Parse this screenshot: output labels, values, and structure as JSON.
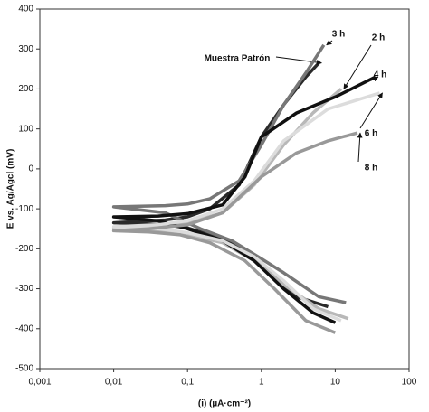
{
  "chart_data": {
    "type": "line",
    "xlabel": "(i) (µA·cm⁻²)",
    "ylabel": "E vs. Ag/Agcl (mV)",
    "xscale": "log",
    "xlim": [
      0.001,
      100
    ],
    "xticks": [
      {
        "value": 0.001,
        "label": "0,001"
      },
      {
        "value": 0.01,
        "label": "0,01"
      },
      {
        "value": 0.1,
        "label": "0,1"
      },
      1,
      10,
      100
    ],
    "ylim": [
      -500,
      400
    ],
    "yticks": [
      -500,
      -400,
      -300,
      -200,
      -100,
      0,
      100,
      200,
      300,
      400
    ],
    "series": [
      {
        "name": "Muestra Patrón",
        "color": "#2a2a2a",
        "x": [
          8,
          3,
          1,
          0.5,
          0.2,
          0.1,
          0.05,
          0.01,
          0.05,
          0.1,
          0.2,
          0.5,
          1,
          2,
          4,
          6
        ],
        "values": [
          -345,
          -320,
          -240,
          -195,
          -165,
          -148,
          -140,
          -135,
          -128,
          -120,
          -100,
          -40,
          80,
          160,
          230,
          265
        ]
      },
      {
        "name": "3 h",
        "color": "#777777",
        "x": [
          14,
          6,
          2,
          1,
          0.4,
          0.15,
          0.05,
          0.01,
          0.05,
          0.1,
          0.2,
          0.5,
          1,
          2,
          4,
          7
        ],
        "values": [
          -335,
          -320,
          -260,
          -225,
          -180,
          -150,
          -110,
          -95,
          -92,
          -88,
          -75,
          -30,
          60,
          160,
          240,
          310
        ]
      },
      {
        "name": "2 h",
        "color": "#b8b8b8",
        "x": [
          15,
          6,
          2,
          0.8,
          0.3,
          0.1,
          0.04,
          0.01,
          0.04,
          0.1,
          0.3,
          0.8,
          2,
          5,
          12
        ],
        "values": [
          -375,
          -350,
          -290,
          -230,
          -185,
          -165,
          -155,
          -150,
          -145,
          -135,
          -110,
          -40,
          60,
          140,
          200
        ]
      },
      {
        "name": "4 h",
        "color": "#111111",
        "x": [
          10,
          5,
          2,
          0.8,
          0.3,
          0.1,
          0.04,
          0.01,
          0.04,
          0.1,
          0.3,
          0.6,
          1,
          3,
          10,
          35
        ],
        "values": [
          -385,
          -360,
          -300,
          -230,
          -180,
          -150,
          -130,
          -120,
          -118,
          -112,
          -90,
          -20,
          80,
          140,
          180,
          230
        ]
      },
      {
        "name": "6 h",
        "color": "#dcdcdc",
        "x": [
          12,
          5,
          2,
          0.8,
          0.3,
          0.1,
          0.04,
          0.01,
          0.04,
          0.1,
          0.3,
          0.8,
          2,
          8,
          40
        ],
        "values": [
          -380,
          -350,
          -280,
          -220,
          -180,
          -160,
          -150,
          -145,
          -140,
          -130,
          -100,
          -30,
          70,
          150,
          190
        ]
      },
      {
        "name": "8 h",
        "color": "#999999",
        "x": [
          10,
          4,
          1.5,
          0.6,
          0.2,
          0.08,
          0.03,
          0.01,
          0.03,
          0.1,
          0.3,
          1,
          3,
          8,
          20
        ],
        "values": [
          -410,
          -380,
          -300,
          -230,
          -185,
          -165,
          -158,
          -155,
          -150,
          -140,
          -110,
          -20,
          40,
          70,
          90
        ]
      }
    ]
  }
}
